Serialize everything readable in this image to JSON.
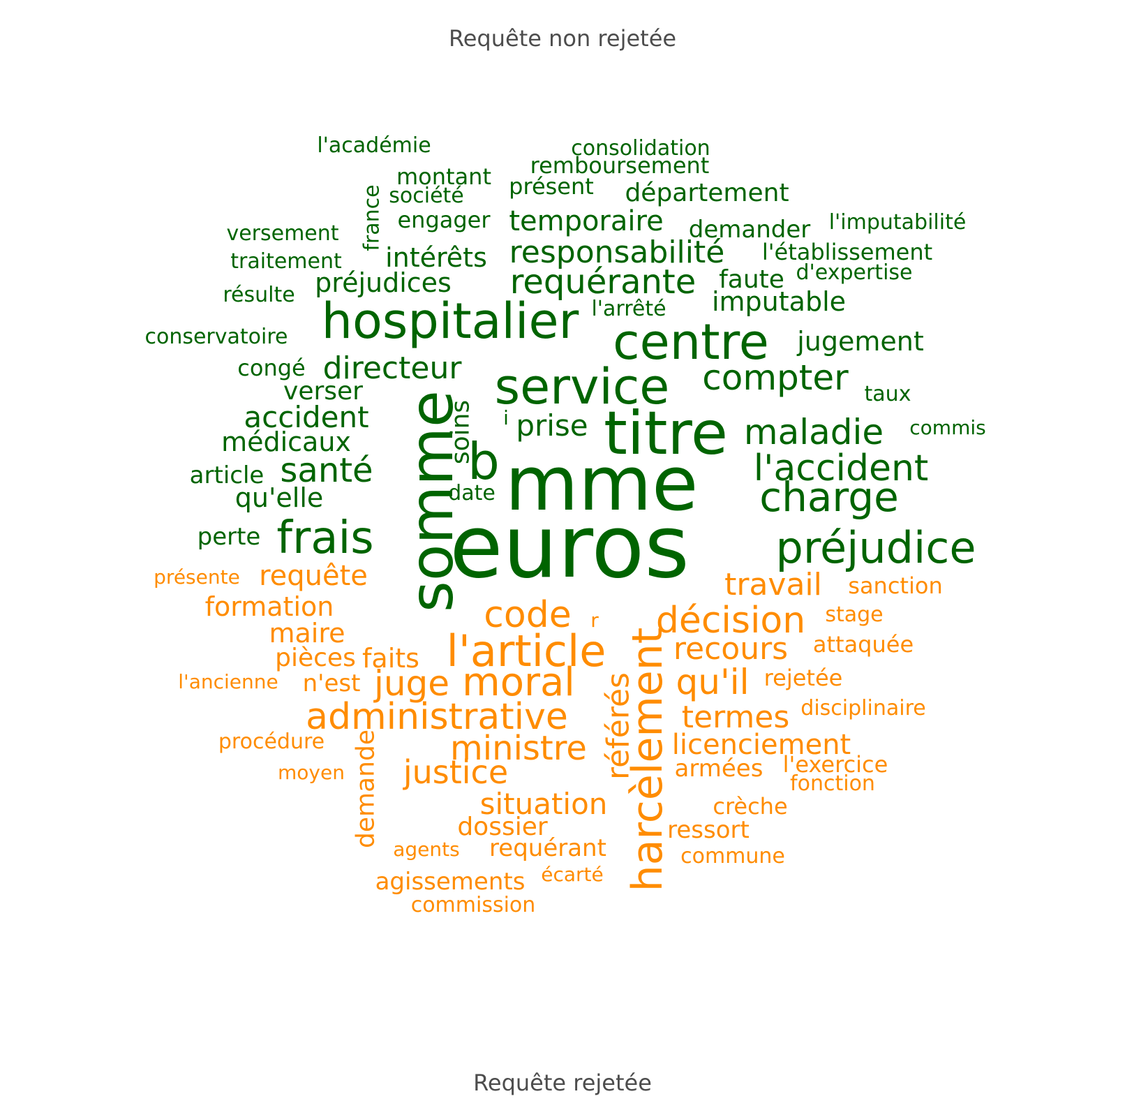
{
  "chart_data": {
    "type": "wordcloud",
    "groups": [
      {
        "label": "Requête non rejetée",
        "color": "#006400",
        "words": [
          {
            "text": "euros",
            "rank": 1
          },
          {
            "text": "mme",
            "rank": 2
          },
          {
            "text": "somme",
            "rank": 3
          },
          {
            "text": "titre",
            "rank": 4
          },
          {
            "text": "hospitalier",
            "rank": 5
          },
          {
            "text": "centre",
            "rank": 6
          },
          {
            "text": "service",
            "rank": 7
          },
          {
            "text": "préjudice",
            "rank": 8
          },
          {
            "text": "frais",
            "rank": 9
          },
          {
            "text": "charge",
            "rank": 10
          },
          {
            "text": "b",
            "rank": 11
          },
          {
            "text": "l'accident",
            "rank": 12
          },
          {
            "text": "maladie",
            "rank": 13
          },
          {
            "text": "compter",
            "rank": 14
          },
          {
            "text": "santé",
            "rank": 15
          },
          {
            "text": "directeur",
            "rank": 16
          },
          {
            "text": "requérante",
            "rank": 17
          },
          {
            "text": "responsabilité",
            "rank": 18
          },
          {
            "text": "accident",
            "rank": 19
          },
          {
            "text": "prise",
            "rank": 20
          },
          {
            "text": "temporaire",
            "rank": 21
          },
          {
            "text": "jugement",
            "rank": 22
          },
          {
            "text": "préjudices",
            "rank": 23
          },
          {
            "text": "intérêts",
            "rank": 24
          },
          {
            "text": "imputable",
            "rank": 25
          },
          {
            "text": "médicaux",
            "rank": 26
          },
          {
            "text": "qu'elle",
            "rank": 27
          },
          {
            "text": "soins",
            "rank": 28
          },
          {
            "text": "département",
            "rank": 29
          },
          {
            "text": "faute",
            "rank": 30
          },
          {
            "text": "verser",
            "rank": 31
          },
          {
            "text": "perte",
            "rank": 32
          },
          {
            "text": "article",
            "rank": 33
          },
          {
            "text": "demander",
            "rank": 34
          },
          {
            "text": "engager",
            "rank": 35
          },
          {
            "text": "montant",
            "rank": 36
          },
          {
            "text": "remboursement",
            "rank": 37
          },
          {
            "text": "présent",
            "rank": 38
          },
          {
            "text": "congé",
            "rank": 39
          },
          {
            "text": "l'établissement",
            "rank": 40
          },
          {
            "text": "versement",
            "rank": 41
          },
          {
            "text": "traitement",
            "rank": 42
          },
          {
            "text": "date",
            "rank": 43
          },
          {
            "text": "taux",
            "rank": 44
          },
          {
            "text": "france",
            "rank": 45
          },
          {
            "text": "l'arrêté",
            "rank": 46
          },
          {
            "text": "consolidation",
            "rank": 47
          },
          {
            "text": "conservatoire",
            "rank": 48
          },
          {
            "text": "société",
            "rank": 49
          },
          {
            "text": "d'expertise",
            "rank": 50
          },
          {
            "text": "l'imputabilité",
            "rank": 51
          },
          {
            "text": "l'académie",
            "rank": 52
          },
          {
            "text": "résulte",
            "rank": 53
          },
          {
            "text": "commis",
            "rank": 54
          },
          {
            "text": "i",
            "rank": 55
          }
        ]
      },
      {
        "label": "Requête rejetée",
        "color": "#FF8C00",
        "words": [
          {
            "text": "harcèlement",
            "rank": 1
          },
          {
            "text": "l'article",
            "rank": 2
          },
          {
            "text": "administrative",
            "rank": 3
          },
          {
            "text": "moral",
            "rank": 4
          },
          {
            "text": "décision",
            "rank": 5
          },
          {
            "text": "code",
            "rank": 6
          },
          {
            "text": "juge",
            "rank": 7
          },
          {
            "text": "qu'il",
            "rank": 8
          },
          {
            "text": "ministre",
            "rank": 9
          },
          {
            "text": "référés",
            "rank": 10
          },
          {
            "text": "justice",
            "rank": 11
          },
          {
            "text": "travail",
            "rank": 12
          },
          {
            "text": "recours",
            "rank": 13
          },
          {
            "text": "termes",
            "rank": 14
          },
          {
            "text": "situation",
            "rank": 15
          },
          {
            "text": "requête",
            "rank": 16
          },
          {
            "text": "licenciement",
            "rank": 17
          },
          {
            "text": "demande",
            "rank": 18
          },
          {
            "text": "formation",
            "rank": 19
          },
          {
            "text": "faits",
            "rank": 20
          },
          {
            "text": "maire",
            "rank": 21
          },
          {
            "text": "pièces",
            "rank": 22
          },
          {
            "text": "dossier",
            "rank": 23
          },
          {
            "text": "n'est",
            "rank": 24
          },
          {
            "text": "requérant",
            "rank": 25
          },
          {
            "text": "armées",
            "rank": 26
          },
          {
            "text": "agissements",
            "rank": 27
          },
          {
            "text": "ressort",
            "rank": 28
          },
          {
            "text": "rejetée",
            "rank": 29
          },
          {
            "text": "l'exercice",
            "rank": 30
          },
          {
            "text": "crèche",
            "rank": 31
          },
          {
            "text": "attaquée",
            "rank": 32
          },
          {
            "text": "sanction",
            "rank": 33
          },
          {
            "text": "commission",
            "rank": 34
          },
          {
            "text": "commune",
            "rank": 35
          },
          {
            "text": "disciplinaire",
            "rank": 36
          },
          {
            "text": "procédure",
            "rank": 37
          },
          {
            "text": "fonction",
            "rank": 38
          },
          {
            "text": "stage",
            "rank": 39
          },
          {
            "text": "agents",
            "rank": 40
          },
          {
            "text": "écarté",
            "rank": 41
          },
          {
            "text": "moyen",
            "rank": 42
          },
          {
            "text": "l'ancienne",
            "rank": 43
          },
          {
            "text": "présente",
            "rank": 44
          },
          {
            "text": "r",
            "rank": 45
          }
        ]
      }
    ]
  }
}
